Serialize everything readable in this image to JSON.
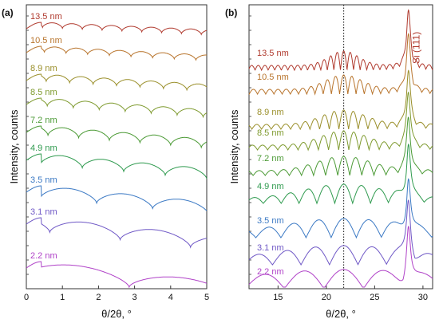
{
  "chart_data": [
    {
      "panel_label": "(a)",
      "type": "line",
      "xlabel": "θ/2θ, °",
      "ylabel": "Intensity, counts",
      "xlim": [
        0,
        5
      ],
      "x_ticks": [
        0,
        1,
        2,
        3,
        4,
        5
      ],
      "y_scale": "log, stacked with vertical offsets",
      "series": [
        {
          "name": "13.5 nm",
          "color": "#b03a2e",
          "fringe_period_deg": 0.55,
          "first_min_deg": 1.0,
          "min_depth": 0.45
        },
        {
          "name": "10.5 nm",
          "color": "#b8742c",
          "fringe_period_deg": 0.6,
          "first_min_deg": 1.1,
          "min_depth": 0.45
        },
        {
          "name": "8.9 nm",
          "color": "#9a8f2a",
          "fringe_period_deg": 0.65,
          "first_min_deg": 1.2,
          "min_depth": 0.5
        },
        {
          "name": "8.5 nm",
          "color": "#7e9a2e",
          "fringe_period_deg": 0.72,
          "first_min_deg": 1.3,
          "min_depth": 0.5
        },
        {
          "name": "7.2 nm",
          "color": "#4b9a35",
          "fringe_period_deg": 0.85,
          "first_min_deg": 1.45,
          "min_depth": 0.55
        },
        {
          "name": "4.9 nm",
          "color": "#2e9a4e",
          "fringe_period_deg": 1.15,
          "first_min_deg": 1.55,
          "min_depth": 0.6
        },
        {
          "name": "3.5 nm",
          "color": "#3b79c4",
          "fringe_period_deg": 1.55,
          "first_min_deg": 1.95,
          "min_depth": 0.65
        },
        {
          "name": "3.1 nm",
          "color": "#6f58c6",
          "fringe_period_deg": 1.95,
          "first_min_deg": 2.6,
          "min_depth": 0.7
        },
        {
          "name": "2.2 nm",
          "color": "#b042c8",
          "fringe_period_deg": 2.9,
          "first_min_deg": 2.85,
          "min_depth": 0.75
        }
      ]
    },
    {
      "panel_label": "(b)",
      "type": "line",
      "xlabel": "θ/2θ, °",
      "ylabel": "Intensity, counts",
      "xlim": [
        12,
        31
      ],
      "x_ticks": [
        15,
        20,
        25,
        30
      ],
      "y_scale": "log, stacked with vertical offsets",
      "annotations": [
        {
          "text": "Si (111)",
          "x": 28.5
        },
        {
          "text": "dotted reference line",
          "x": 21.8
        }
      ],
      "series": [
        {
          "name": "13.5 nm",
          "color": "#b03a2e",
          "fringe_period_deg": 0.68
        },
        {
          "name": "10.5 nm",
          "color": "#b8742c",
          "fringe_period_deg": 0.85
        },
        {
          "name": "8.9 nm",
          "color": "#9a8f2a",
          "fringe_period_deg": 1.0
        },
        {
          "name": "8.5 nm",
          "color": "#7e9a2e",
          "fringe_period_deg": 1.05
        },
        {
          "name": "7.2 nm",
          "color": "#4b9a35",
          "fringe_period_deg": 1.25
        },
        {
          "name": "4.9 nm",
          "color": "#2e9a4e",
          "fringe_period_deg": 1.85
        },
        {
          "name": "3.5 nm",
          "color": "#3b79c4",
          "fringe_period_deg": 2.6
        },
        {
          "name": "3.1 nm",
          "color": "#6f58c6",
          "fringe_period_deg": 2.95
        },
        {
          "name": "2.2 nm",
          "color": "#b042c8",
          "fringe_period_deg": 4.1
        }
      ]
    }
  ]
}
